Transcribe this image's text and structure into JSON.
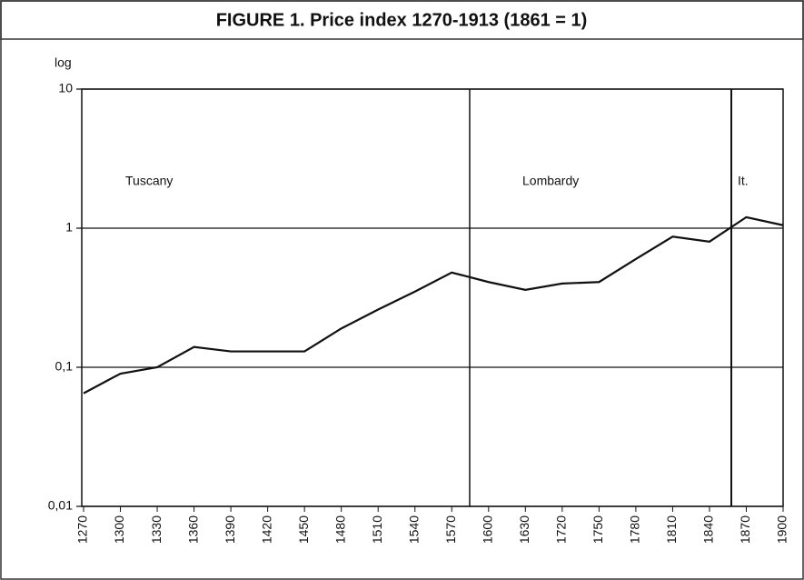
{
  "chart_data": {
    "type": "line",
    "title": "FIGURE 1. Price index 1270-1913 (1861 = 1)",
    "y_label": "log",
    "log_scale": true,
    "grid": true,
    "categories": [
      "1270",
      "1300",
      "1330",
      "1360",
      "1390",
      "1420",
      "1450",
      "1480",
      "1510",
      "1540",
      "1570",
      "1600",
      "1630",
      "1720",
      "1750",
      "1780",
      "1810",
      "1840",
      "1870",
      "1900"
    ],
    "series": [
      {
        "name": "Price index",
        "color": "#111111",
        "values": [
          0.065,
          0.09,
          0.1,
          0.14,
          0.13,
          0.13,
          0.13,
          0.19,
          0.26,
          0.35,
          0.48,
          0.41,
          0.36,
          0.4,
          0.41,
          0.6,
          0.87,
          0.8,
          1.2,
          1.05
        ]
      }
    ],
    "ylim": [
      0.01,
      10
    ],
    "yticks": [
      {
        "value": 0.01,
        "label": "0,01"
      },
      {
        "value": 0.1,
        "label": "0,1"
      },
      1,
      10
    ],
    "annotations": [
      "Tuscany",
      "Lombardy",
      "It."
    ]
  }
}
